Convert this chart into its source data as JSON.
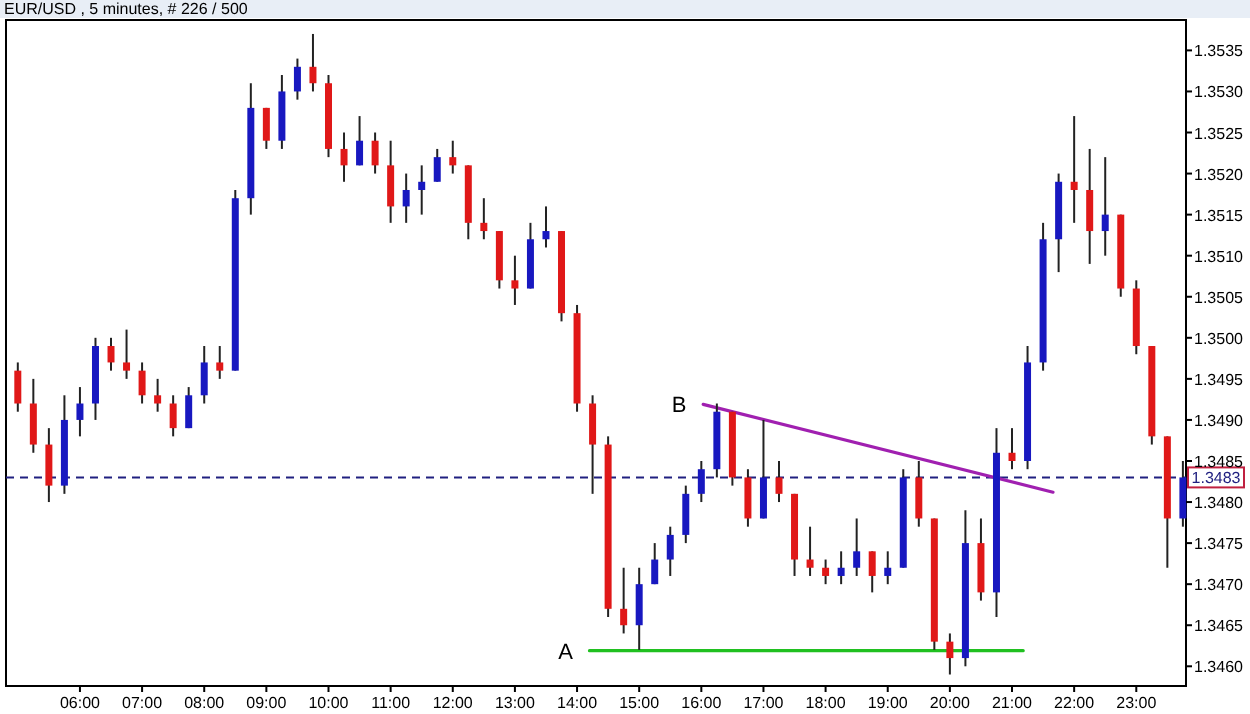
{
  "chart_data": {
    "type": "candlestick",
    "title": "EUR/USD , 5 minutes, # 226 / 500",
    "xlim": [
      4.81,
      23.8
    ],
    "xticks": [
      {
        "value": 6,
        "label": "06:00"
      },
      {
        "value": 7,
        "label": "07:00"
      },
      {
        "value": 8,
        "label": "08:00"
      },
      {
        "value": 9,
        "label": "09:00"
      },
      {
        "value": 10,
        "label": "10:00"
      },
      {
        "value": 11,
        "label": "11:00"
      },
      {
        "value": 12,
        "label": "12:00"
      },
      {
        "value": 13,
        "label": "13:00"
      },
      {
        "value": 14,
        "label": "14:00"
      },
      {
        "value": 15,
        "label": "15:00"
      },
      {
        "value": 16,
        "label": "16:00"
      },
      {
        "value": 17,
        "label": "17:00"
      },
      {
        "value": 18,
        "label": "18:00"
      },
      {
        "value": 19,
        "label": "19:00"
      },
      {
        "value": 20,
        "label": "20:00"
      },
      {
        "value": 21,
        "label": "21:00"
      },
      {
        "value": 22,
        "label": "22:00"
      },
      {
        "value": 23,
        "label": "23:00"
      }
    ],
    "ylim": [
      1.34576,
      1.35387
    ],
    "yticks": [
      {
        "value": 1.346,
        "label": "1.3460"
      },
      1.3465,
      {
        "value": 1.347,
        "label": "1.3470"
      },
      1.3475,
      {
        "value": 1.348,
        "label": "1.3480"
      },
      1.3485,
      {
        "value": 1.349,
        "label": "1.3490"
      },
      1.3495,
      {
        "value": 1.35,
        "label": "1.3500"
      },
      1.3505,
      {
        "value": 1.351,
        "label": "1.3510"
      },
      1.3515,
      {
        "value": 1.352,
        "label": "1.3520"
      },
      1.3525,
      {
        "value": 1.353,
        "label": "1.3530"
      },
      1.3535
    ],
    "ref_lines": [
      {
        "axis": "y",
        "value": 1.3483,
        "label": "1.3483",
        "color": "#202080",
        "line_style": "dashed"
      }
    ],
    "annotations": [
      "A",
      "B"
    ],
    "series": [
      {
        "x": [
          5,
          5.25,
          5.5,
          5.75,
          6,
          6.25,
          6.5,
          6.75,
          7,
          7.25,
          7.5,
          7.75,
          8,
          8.25,
          8.5,
          8.75,
          9,
          9.25,
          9.5,
          9.75,
          10,
          10.25,
          10.5,
          10.75,
          11,
          11.25,
          11.5,
          11.75,
          12,
          12.25,
          12.5,
          12.75,
          13,
          13.25,
          13.5,
          13.75,
          14,
          14.25,
          14.5,
          14.75,
          15,
          15.25,
          15.5,
          15.75,
          16,
          16.25,
          16.5,
          16.75,
          17,
          17.25,
          17.5,
          17.75,
          18,
          18.25,
          18.5,
          18.75,
          19,
          19.25,
          19.5,
          19.75,
          20,
          20.25,
          20.5,
          20.75,
          21,
          21.25,
          21.5,
          21.75,
          22,
          22.25,
          22.5,
          22.75,
          23,
          23.25,
          23.5,
          23.75
        ],
        "ohlc": [
          [
            1.3496,
            1.3497,
            1.3491,
            1.3492
          ],
          [
            1.3492,
            1.3495,
            1.3486,
            1.3487
          ],
          [
            1.3487,
            1.3489,
            1.348,
            1.3482
          ],
          [
            1.3482,
            1.3493,
            1.3481,
            1.349
          ],
          [
            1.349,
            1.3494,
            1.3488,
            1.3492
          ],
          [
            1.3492,
            1.35,
            1.349,
            1.3499
          ],
          [
            1.3499,
            1.35,
            1.3496,
            1.3497
          ],
          [
            1.3497,
            1.3501,
            1.3495,
            1.3496
          ],
          [
            1.3496,
            1.3497,
            1.3492,
            1.3493
          ],
          [
            1.3493,
            1.3495,
            1.3491,
            1.3492
          ],
          [
            1.3492,
            1.3493,
            1.3488,
            1.3489
          ],
          [
            1.3489,
            1.3494,
            1.3489,
            1.3493
          ],
          [
            1.3493,
            1.3499,
            1.3492,
            1.3497
          ],
          [
            1.3497,
            1.3499,
            1.3495,
            1.3496
          ],
          [
            1.3496,
            1.3518,
            1.3496,
            1.3517
          ],
          [
            1.3517,
            1.3531,
            1.3515,
            1.3528
          ],
          [
            1.3528,
            1.3528,
            1.3523,
            1.3524
          ],
          [
            1.3524,
            1.3532,
            1.3523,
            1.353
          ],
          [
            1.353,
            1.3534,
            1.3529,
            1.3533
          ],
          [
            1.3533,
            1.3537,
            1.353,
            1.3531
          ],
          [
            1.3531,
            1.3532,
            1.3522,
            1.3523
          ],
          [
            1.3523,
            1.3525,
            1.3519,
            1.3521
          ],
          [
            1.3521,
            1.3527,
            1.3521,
            1.3524
          ],
          [
            1.3524,
            1.3525,
            1.352,
            1.3521
          ],
          [
            1.3521,
            1.3524,
            1.3514,
            1.3516
          ],
          [
            1.3516,
            1.352,
            1.3514,
            1.3518
          ],
          [
            1.3518,
            1.3521,
            1.3515,
            1.3519
          ],
          [
            1.3519,
            1.3523,
            1.3519,
            1.3522
          ],
          [
            1.3522,
            1.3524,
            1.352,
            1.3521
          ],
          [
            1.3521,
            1.3521,
            1.3512,
            1.3514
          ],
          [
            1.3514,
            1.3517,
            1.3512,
            1.3513
          ],
          [
            1.3513,
            1.3513,
            1.3506,
            1.3507
          ],
          [
            1.3507,
            1.351,
            1.3504,
            1.3506
          ],
          [
            1.3506,
            1.3514,
            1.3506,
            1.3512
          ],
          [
            1.3512,
            1.3516,
            1.3511,
            1.3513
          ],
          [
            1.3513,
            1.3513,
            1.3502,
            1.3503
          ],
          [
            1.3503,
            1.3504,
            1.3491,
            1.3492
          ],
          [
            1.3492,
            1.3493,
            1.3481,
            1.3487
          ],
          [
            1.3487,
            1.3488,
            1.3466,
            1.3467
          ],
          [
            1.3467,
            1.3472,
            1.3464,
            1.3465
          ],
          [
            1.3465,
            1.3472,
            1.3462,
            1.347
          ],
          [
            1.347,
            1.3475,
            1.347,
            1.3473
          ],
          [
            1.3473,
            1.3477,
            1.3471,
            1.3476
          ],
          [
            1.3476,
            1.3482,
            1.3475,
            1.3481
          ],
          [
            1.3481,
            1.3485,
            1.348,
            1.3484
          ],
          [
            1.3484,
            1.3492,
            1.3483,
            1.3491
          ],
          [
            1.3491,
            1.3491,
            1.3482,
            1.3483
          ],
          [
            1.3483,
            1.3484,
            1.3477,
            1.3478
          ],
          [
            1.3478,
            1.349,
            1.3478,
            1.3483
          ],
          [
            1.3483,
            1.3485,
            1.348,
            1.3481
          ],
          [
            1.3481,
            1.3481,
            1.3471,
            1.3473
          ],
          [
            1.3473,
            1.3477,
            1.3471,
            1.3472
          ],
          [
            1.3472,
            1.3473,
            1.347,
            1.3471
          ],
          [
            1.3471,
            1.3474,
            1.347,
            1.3472
          ],
          [
            1.3472,
            1.3478,
            1.3471,
            1.3474
          ],
          [
            1.3474,
            1.3474,
            1.3469,
            1.3471
          ],
          [
            1.3471,
            1.3474,
            1.347,
            1.3472
          ],
          [
            1.3472,
            1.3484,
            1.3472,
            1.3483
          ],
          [
            1.3483,
            1.3485,
            1.3477,
            1.3478
          ],
          [
            1.3478,
            1.3478,
            1.3462,
            1.3463
          ],
          [
            1.3463,
            1.3464,
            1.3459,
            1.3461
          ],
          [
            1.3461,
            1.3479,
            1.346,
            1.3475
          ],
          [
            1.3475,
            1.3478,
            1.3468,
            1.3469
          ],
          [
            1.3469,
            1.3489,
            1.3466,
            1.3486
          ],
          [
            1.3486,
            1.3489,
            1.3484,
            1.3485
          ],
          [
            1.3485,
            1.3499,
            1.3484,
            1.3497
          ],
          [
            1.3497,
            1.3514,
            1.3496,
            1.3512
          ],
          [
            1.3512,
            1.352,
            1.3508,
            1.3519
          ],
          [
            1.3519,
            1.3527,
            1.3514,
            1.3518
          ],
          [
            1.3518,
            1.3523,
            1.3509,
            1.3513
          ],
          [
            1.3513,
            1.3522,
            1.351,
            1.3515
          ],
          [
            1.3515,
            1.3515,
            1.3505,
            1.3506
          ],
          [
            1.3506,
            1.3507,
            1.3498,
            1.3499
          ],
          [
            1.3499,
            1.3499,
            1.3487,
            1.3488
          ],
          [
            1.3488,
            1.3488,
            1.3472,
            1.3478
          ],
          [
            1.3478,
            1.3485,
            1.3477,
            1.3483
          ]
        ],
        "colors": [
          "#e01818",
          "#e01818",
          "#e01818",
          "#1818c0",
          "#1818c0",
          "#1818c0",
          "#e01818",
          "#e01818",
          "#e01818",
          "#e01818",
          "#e01818",
          "#1818c0",
          "#1818c0",
          "#e01818",
          "#1818c0",
          "#1818c0",
          "#e01818",
          "#1818c0",
          "#1818c0",
          "#e01818",
          "#e01818",
          "#e01818",
          "#1818c0",
          "#e01818",
          "#e01818",
          "#1818c0",
          "#1818c0",
          "#1818c0",
          "#e01818",
          "#e01818",
          "#e01818",
          "#e01818",
          "#e01818",
          "#1818c0",
          "#1818c0",
          "#e01818",
          "#e01818",
          "#e01818",
          "#e01818",
          "#e01818",
          "#1818c0",
          "#1818c0",
          "#1818c0",
          "#1818c0",
          "#1818c0",
          "#1818c0",
          "#e01818",
          "#e01818",
          "#1818c0",
          "#e01818",
          "#e01818",
          "#e01818",
          "#e01818",
          "#1818c0",
          "#1818c0",
          "#e01818",
          "#1818c0",
          "#1818c0",
          "#e01818",
          "#e01818",
          "#e01818",
          "#1818c0",
          "#e01818",
          "#1818c0",
          "#e01818",
          "#1818c0",
          "#1818c0",
          "#1818c0",
          "#e01818",
          "#e01818",
          "#1818c0",
          "#e01818",
          "#e01818",
          "#e01818",
          "#e01818",
          "#1818c0"
        ]
      },
      {
        "type": "line",
        "color": "#20c020",
        "x": [
          14.2,
          21.18
        ],
        "values": [
          1.34619,
          1.34619
        ]
      },
      {
        "type": "line",
        "color": "#a020b0",
        "x": [
          16.03,
          21.66
        ],
        "values": [
          1.34919,
          1.34812
        ]
      }
    ]
  }
}
